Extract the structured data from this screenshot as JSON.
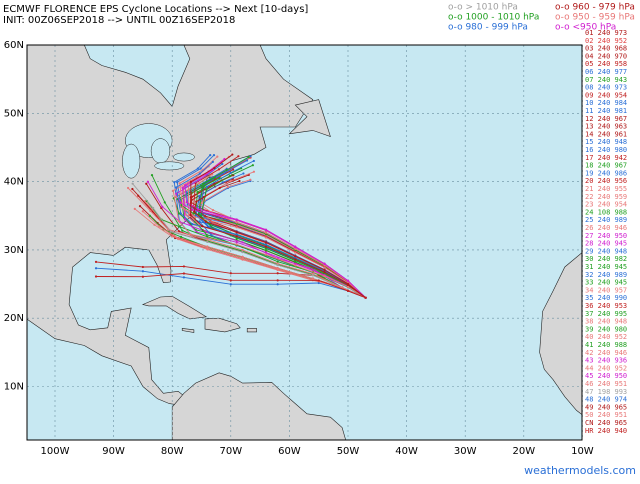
{
  "header": {
    "title": "ECMWF FLORENCE EPS Cyclone Locations --> Next [10-days]",
    "init": "INIT: 00Z06SEP2018 --> UNTIL 00Z16SEP2018"
  },
  "pressure_legend": [
    {
      "label": "o-o > 1010 hPa",
      "color": "#a0a0a0"
    },
    {
      "label": "o-o 1000 - 1010 hPa",
      "color": "#22a022"
    },
    {
      "label": "o-o 980 - 999 hPa",
      "color": "#2a6fd6"
    },
    {
      "label": "o-o 960 - 979 hPa",
      "color": "#b01818"
    },
    {
      "label": "o-o 950 - 959 hPa",
      "color": "#e87878"
    },
    {
      "label": "o-o <950 hPa",
      "color": "#d020d0"
    }
  ],
  "axes": {
    "lat_labels": [
      "60N",
      "50N",
      "40N",
      "30N",
      "20N",
      "10N"
    ],
    "lon_labels": [
      "100W",
      "90W",
      "80W",
      "70W",
      "60W",
      "50W",
      "40W",
      "30W",
      "20W",
      "10W"
    ]
  },
  "members": [
    {
      "label": "01 240 973",
      "color": "#b01818"
    },
    {
      "label": "02 240 952",
      "color": "#e04040"
    },
    {
      "label": "03 240 968",
      "color": "#b01818"
    },
    {
      "label": "04 240 970",
      "color": "#b01818"
    },
    {
      "label": "05 240 958",
      "color": "#c02020"
    },
    {
      "label": "06 240 977",
      "color": "#2a6fd6"
    },
    {
      "label": "07 240 943",
      "color": "#22a022"
    },
    {
      "label": "08 240 973",
      "color": "#2a6fd6"
    },
    {
      "label": "09 240 954",
      "color": "#c02020"
    },
    {
      "label": "10 240 984",
      "color": "#2a6fd6"
    },
    {
      "label": "11 240 981",
      "color": "#2a6fd6"
    },
    {
      "label": "12 240 967",
      "color": "#b01818"
    },
    {
      "label": "13 240 963",
      "color": "#b01818"
    },
    {
      "label": "14 240 961",
      "color": "#b01818"
    },
    {
      "label": "15 240 948",
      "color": "#2a6fd6"
    },
    {
      "label": "16 240 980",
      "color": "#2a6fd6"
    },
    {
      "label": "17 240 942",
      "color": "#c02020"
    },
    {
      "label": "18 240 967",
      "color": "#22a022"
    },
    {
      "label": "19 240 986",
      "color": "#2a6fd6"
    },
    {
      "label": "20 240 956",
      "color": "#c02020"
    },
    {
      "label": "21 240 955",
      "color": "#e87878"
    },
    {
      "label": "22 240 959",
      "color": "#e87878"
    },
    {
      "label": "23 240 954",
      "color": "#e87878"
    },
    {
      "label": "24 108 988",
      "color": "#22a022"
    },
    {
      "label": "25 240 989",
      "color": "#2a6fd6"
    },
    {
      "label": "26 240 946",
      "color": "#e87878"
    },
    {
      "label": "27 240 950",
      "color": "#d020d0"
    },
    {
      "label": "28 240 945",
      "color": "#d020d0"
    },
    {
      "label": "29 240 948",
      "color": "#2a6fd6"
    },
    {
      "label": "30 240 982",
      "color": "#22a022"
    },
    {
      "label": "31 240 945",
      "color": "#22a022"
    },
    {
      "label": "32 240 989",
      "color": "#2a6fd6"
    },
    {
      "label": "33 240 945",
      "color": "#22a022"
    },
    {
      "label": "34 240 957",
      "color": "#e87878"
    },
    {
      "label": "35 240 990",
      "color": "#2a6fd6"
    },
    {
      "label": "36 240 953",
      "color": "#c02020"
    },
    {
      "label": "37 240 995",
      "color": "#22a022"
    },
    {
      "label": "38 240 948",
      "color": "#e87878"
    },
    {
      "label": "39 240 980",
      "color": "#22a022"
    },
    {
      "label": "40 240 952",
      "color": "#e87878"
    },
    {
      "label": "41 240 988",
      "color": "#22a022"
    },
    {
      "label": "42 240 946",
      "color": "#e87878"
    },
    {
      "label": "43 240 936",
      "color": "#d020d0"
    },
    {
      "label": "44 240 952",
      "color": "#e87878"
    },
    {
      "label": "45 240 950",
      "color": "#d020d0"
    },
    {
      "label": "46 240 951",
      "color": "#e87878"
    },
    {
      "label": "47 198 993",
      "color": "#a0a0a0"
    },
    {
      "label": "48 240 974",
      "color": "#2a6fd6"
    },
    {
      "label": "49 240 965",
      "color": "#b01818"
    },
    {
      "label": "50 240 951",
      "color": "#e87878"
    },
    {
      "label": "CN 240 965",
      "color": "#b01818"
    },
    {
      "label": "HR 240 940",
      "color": "#c02020"
    }
  ],
  "footer": "weathermodels.com"
}
